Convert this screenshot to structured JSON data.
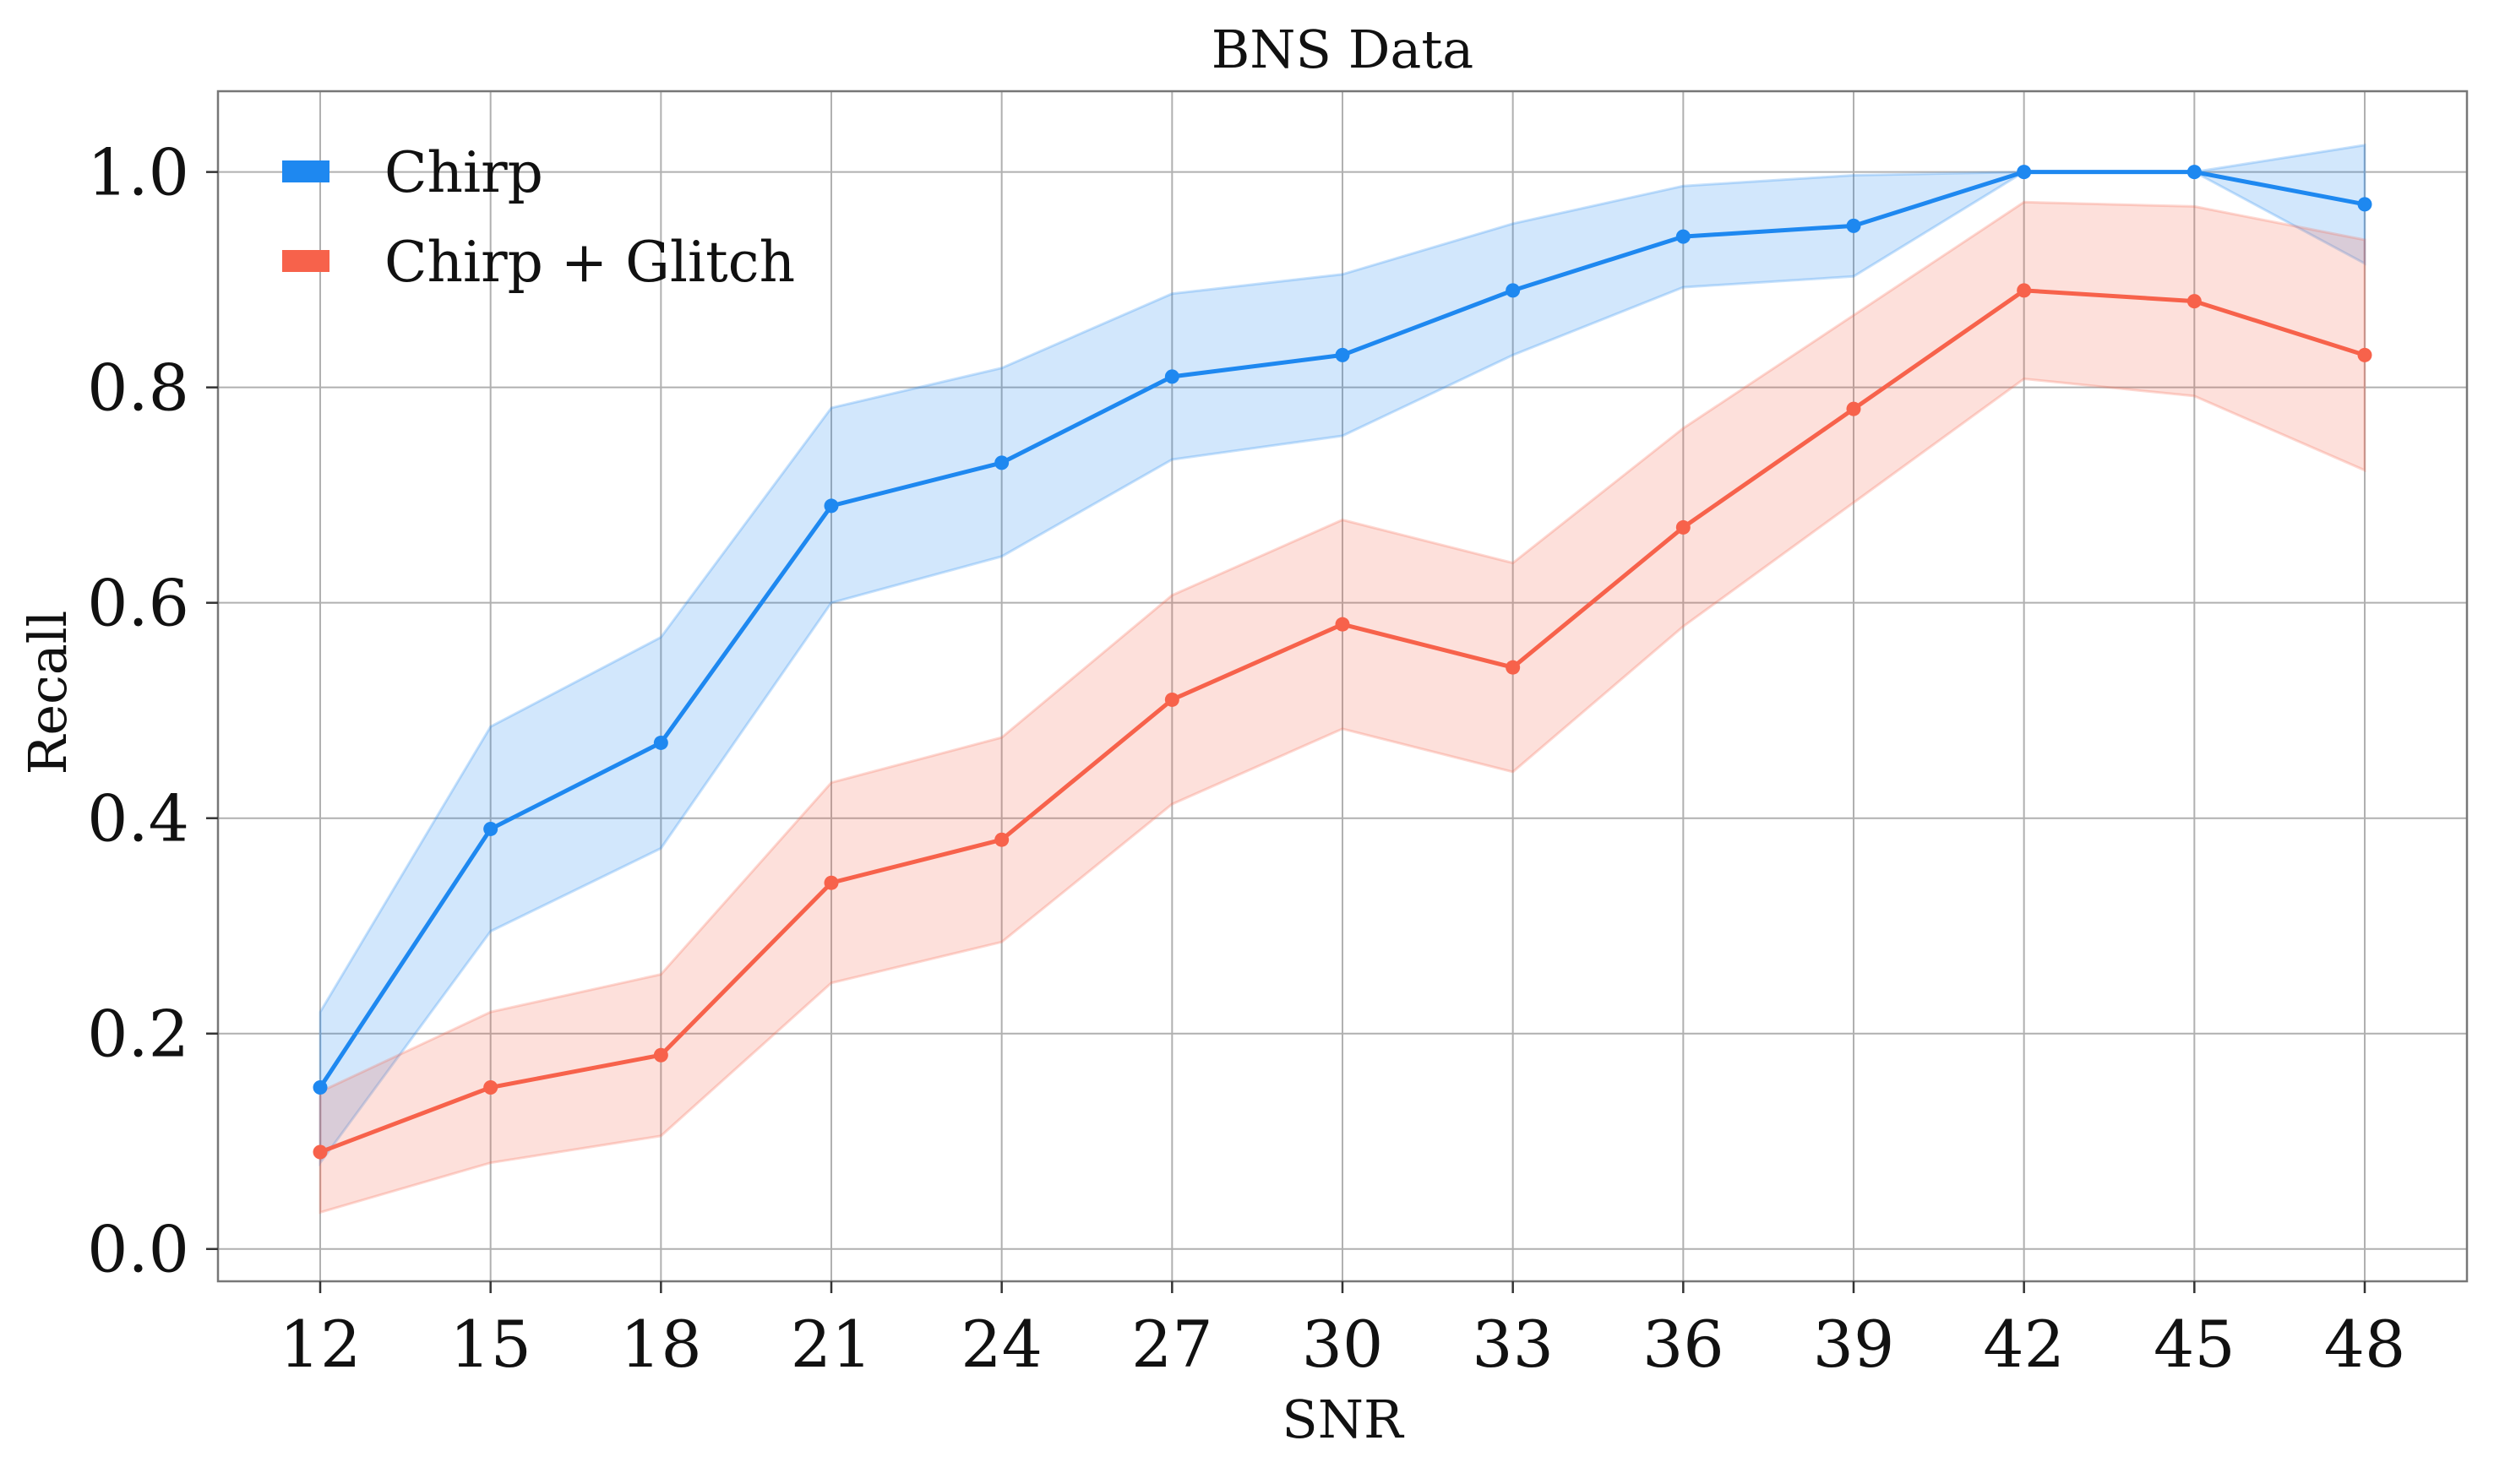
{
  "chart_data": {
    "type": "line",
    "title": "BNS Data",
    "xlabel": "SNR",
    "ylabel": "Recall",
    "x": [
      12,
      15,
      18,
      21,
      24,
      27,
      30,
      33,
      36,
      39,
      42,
      45,
      48
    ],
    "xticks": [
      "12",
      "15",
      "18",
      "21",
      "24",
      "27",
      "30",
      "33",
      "36",
      "39",
      "42",
      "45",
      "48"
    ],
    "yticks": [
      "0.0",
      "0.2",
      "0.4",
      "0.6",
      "0.8",
      "1.0"
    ],
    "ytick_values": [
      0.0,
      0.2,
      0.4,
      0.6,
      0.8,
      1.0
    ],
    "xlim": [
      10.2,
      49.8
    ],
    "ylim": [
      -0.03,
      1.075
    ],
    "grid": true,
    "legend_position": "top-left",
    "series": [
      {
        "name": "Chirp",
        "color": "#1e88f0",
        "band_color": "#1e88f0",
        "values": [
          0.15,
          0.39,
          0.47,
          0.69,
          0.73,
          0.81,
          0.83,
          0.89,
          0.94,
          0.95,
          1.0,
          1.0,
          0.97
        ],
        "lower": [
          0.08,
          0.295,
          0.372,
          0.6,
          0.643,
          0.733,
          0.755,
          0.83,
          0.893,
          0.903,
          1.0,
          1.0,
          0.915
        ],
        "upper": [
          0.22,
          0.485,
          0.568,
          0.781,
          0.818,
          0.887,
          0.905,
          0.952,
          0.987,
          0.997,
          1.0,
          1.0,
          1.025
        ]
      },
      {
        "name": "Chirp + Glitch",
        "color": "#f7624b",
        "band_color": "#f7624b",
        "values": [
          0.09,
          0.15,
          0.18,
          0.34,
          0.38,
          0.51,
          0.58,
          0.54,
          0.67,
          0.78,
          0.89,
          0.88,
          0.83
        ],
        "lower": [
          0.034,
          0.08,
          0.105,
          0.247,
          0.285,
          0.413,
          0.483,
          0.443,
          0.578,
          0.693,
          0.808,
          0.792,
          0.723
        ],
        "upper": [
          0.146,
          0.22,
          0.255,
          0.433,
          0.475,
          0.607,
          0.677,
          0.637,
          0.762,
          0.867,
          0.972,
          0.968,
          0.937
        ]
      }
    ]
  }
}
